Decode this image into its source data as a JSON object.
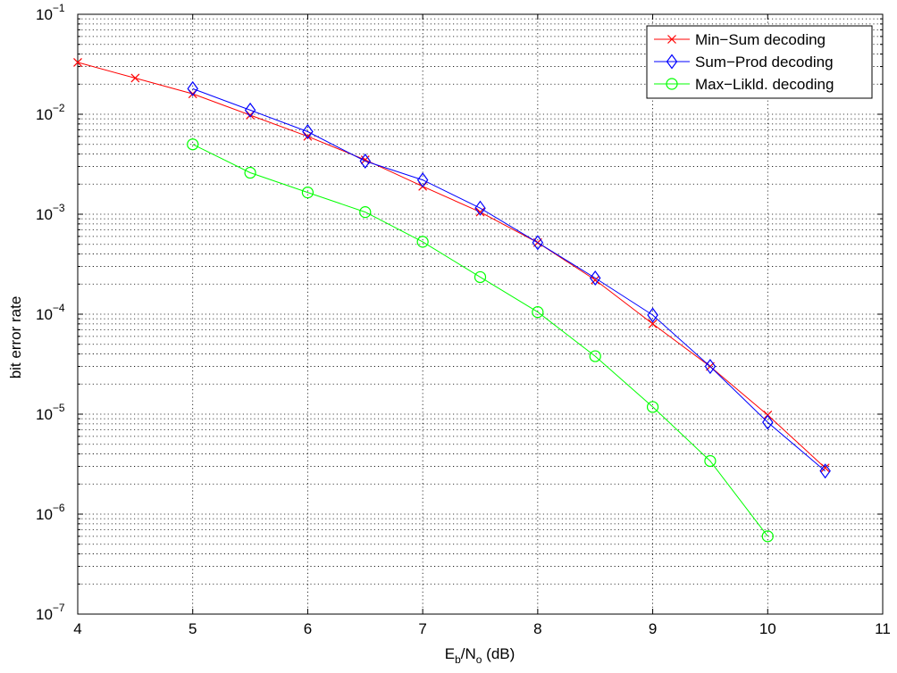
{
  "chart_data": {
    "type": "line",
    "title": "",
    "xlabel": {
      "main": "E",
      "sub1": "b",
      "mid": "/N",
      "sub2": "o",
      "tail": " (dB)"
    },
    "ylabel": "bit error rate",
    "xlim": [
      4,
      11
    ],
    "ylim": [
      1e-07,
      0.1
    ],
    "yscale": "log",
    "grid": true,
    "legend_position": "top-right",
    "x_ticks": [
      "4",
      "5",
      "6",
      "7",
      "8",
      "9",
      "10",
      "11"
    ],
    "y_ticks": [
      {
        "base": "10",
        "exp": "−1"
      },
      {
        "base": "10",
        "exp": "−2"
      },
      {
        "base": "10",
        "exp": "−3"
      },
      {
        "base": "10",
        "exp": "−4"
      },
      {
        "base": "10",
        "exp": "−5"
      },
      {
        "base": "10",
        "exp": "−6"
      },
      {
        "base": "10",
        "exp": "−7"
      }
    ],
    "series": [
      {
        "name": "Min−Sum decoding",
        "color": "#ff0000",
        "marker": "x",
        "x": [
          4,
          4.5,
          5,
          5.5,
          6,
          6.5,
          7,
          7.5,
          8,
          8.5,
          9,
          9.5,
          10,
          10.5
        ],
        "y": [
          0.033,
          0.023,
          0.016,
          0.0098,
          0.006,
          0.0035,
          0.0019,
          0.00105,
          0.00052,
          0.00022,
          8e-05,
          3e-05,
          9.8e-06,
          2.9e-06
        ]
      },
      {
        "name": "Sum−Prod decoding",
        "color": "#0000ff",
        "marker": "diamond",
        "x": [
          5,
          5.5,
          6,
          6.5,
          7,
          7.5,
          8,
          8.5,
          9,
          9.5,
          10,
          10.5
        ],
        "y": [
          0.018,
          0.011,
          0.0067,
          0.0034,
          0.0022,
          0.00115,
          0.00052,
          0.00023,
          9.8e-05,
          3e-05,
          8.3e-06,
          2.7e-06
        ]
      },
      {
        "name": "Max−Likld. decoding",
        "color": "#00ff00",
        "marker": "circle",
        "x": [
          5,
          5.5,
          6,
          6.5,
          7,
          7.5,
          8,
          8.5,
          9,
          9.5,
          10
        ],
        "y": [
          0.005,
          0.0026,
          0.00165,
          0.00105,
          0.00053,
          0.000235,
          0.000105,
          3.8e-05,
          1.18e-05,
          3.4e-06,
          6e-07
        ]
      }
    ]
  }
}
